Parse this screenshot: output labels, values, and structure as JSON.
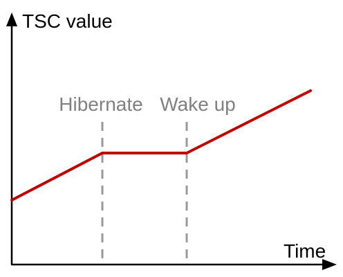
{
  "axes": {
    "y_label": "TSC value",
    "x_label": "Time"
  },
  "events": {
    "hibernate_label": "Hibernate",
    "wake_label": "Wake up"
  },
  "colors": {
    "axis": "#000000",
    "line": "#c00000",
    "marker": "#999999",
    "marker_text": "#808080"
  }
}
